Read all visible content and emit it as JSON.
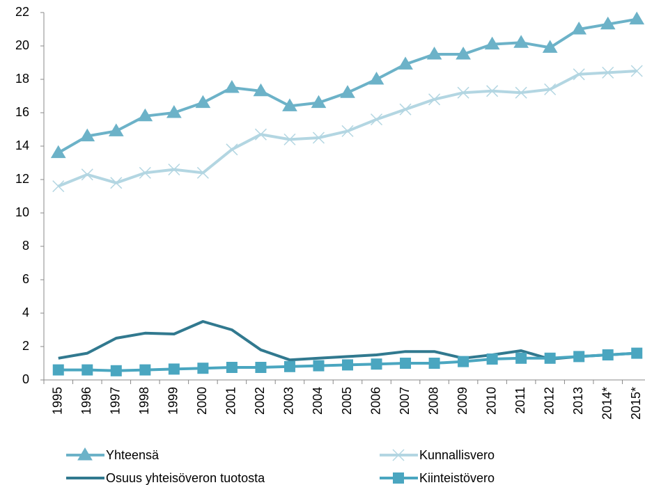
{
  "chart_data": {
    "type": "line",
    "categories": [
      "1995",
      "1996",
      "1997",
      "1998",
      "1999",
      "2000",
      "2001",
      "2002",
      "2003",
      "2004",
      "2005",
      "2006",
      "2007",
      "2008",
      "2009",
      "2010",
      "2011",
      "2012",
      "2013",
      "2014*",
      "2015*"
    ],
    "series": [
      {
        "name": "Yhteensä",
        "color": "#6cb2c8",
        "marker": "triangle",
        "values": [
          13.6,
          14.6,
          14.9,
          15.8,
          16.0,
          16.6,
          17.5,
          17.3,
          16.4,
          16.6,
          17.2,
          18.0,
          18.9,
          19.5,
          19.5,
          20.1,
          20.2,
          19.9,
          21.0,
          21.3,
          21.6
        ]
      },
      {
        "name": "Kunnallisvero",
        "color": "#b3d6e2",
        "marker": "x",
        "values": [
          11.6,
          12.3,
          11.8,
          12.4,
          12.6,
          12.4,
          13.8,
          14.7,
          14.4,
          14.5,
          14.9,
          15.6,
          16.2,
          16.8,
          17.2,
          17.3,
          17.2,
          17.4,
          18.3,
          18.4,
          18.5
        ]
      },
      {
        "name": "Osuus yhteisöveron tuotosta",
        "color": "#31798f",
        "marker": "none",
        "values": [
          1.3,
          1.6,
          2.5,
          2.8,
          2.75,
          3.5,
          3.0,
          1.8,
          1.2,
          1.3,
          1.4,
          1.5,
          1.7,
          1.7,
          1.3,
          1.5,
          1.75,
          1.25,
          1.4,
          1.5,
          1.6
        ]
      },
      {
        "name": "Kiinteistövero",
        "color": "#4aa6c0",
        "marker": "square",
        "values": [
          0.6,
          0.6,
          0.55,
          0.6,
          0.65,
          0.7,
          0.75,
          0.75,
          0.8,
          0.85,
          0.9,
          0.95,
          1.0,
          1.0,
          1.1,
          1.25,
          1.3,
          1.3,
          1.4,
          1.5,
          1.6
        ]
      }
    ],
    "ylim": [
      0,
      22
    ],
    "yticks": [
      0,
      2,
      4,
      6,
      8,
      10,
      12,
      14,
      16,
      18,
      20,
      22
    ],
    "grid": false,
    "legend": "bottom"
  }
}
